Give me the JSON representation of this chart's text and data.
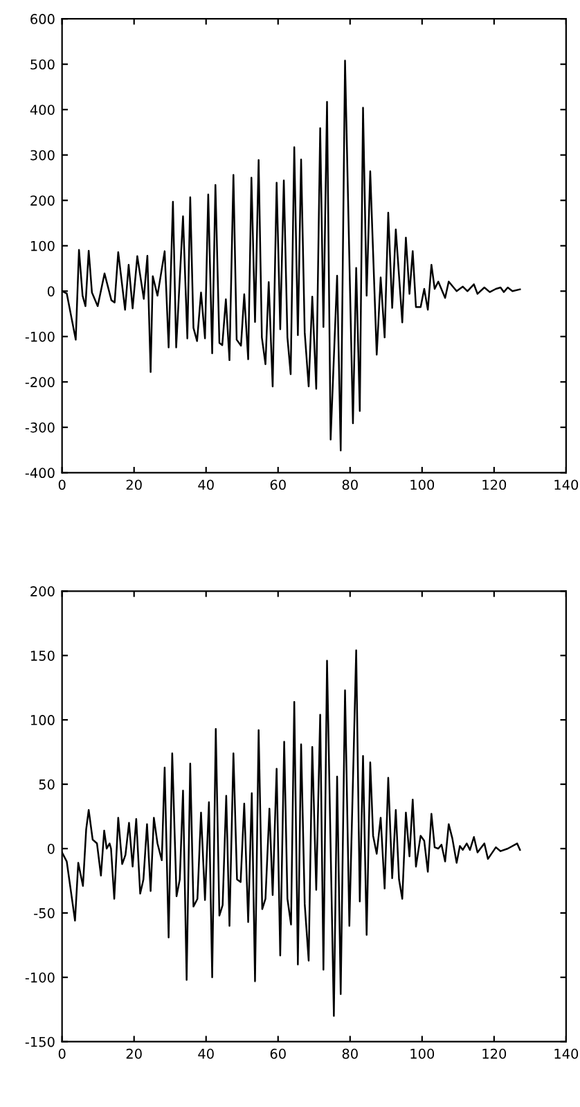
{
  "chart_data": [
    {
      "type": "line",
      "xlim": [
        0,
        140
      ],
      "xticks": [
        0,
        20,
        40,
        60,
        80,
        100,
        120,
        140
      ],
      "ylim": [
        -400,
        600
      ],
      "yticks": [
        -400,
        -300,
        -200,
        -100,
        0,
        100,
        200,
        300,
        400,
        500,
        600
      ],
      "grid": false,
      "legend": false,
      "series": [
        {
          "color": "#000000",
          "x": [
            0,
            1.3,
            3.8,
            4.7,
            5.7,
            6.5,
            7.4,
            8.3,
            9.9,
            11.8,
            13.7,
            14.6,
            15.6,
            17.5,
            18.5,
            19.6,
            20.9,
            22.7,
            23.7,
            24.6,
            25.2,
            26.5,
            28.5,
            29.6,
            30.8,
            31.7,
            33.6,
            34.8,
            35.6,
            36.5,
            37.5,
            38.6,
            39.7,
            40.6,
            41.7,
            42.6,
            43.7,
            44.5,
            45.5,
            46.5,
            47.6,
            48.5,
            49.7,
            50.6,
            51.7,
            52.6,
            53.6,
            54.6,
            55.5,
            56.5,
            57.4,
            58.5,
            59.6,
            60.6,
            61.6,
            62.6,
            63.5,
            64.5,
            65.5,
            66.4,
            67.4,
            68.5,
            69.5,
            70.6,
            71.7,
            72.6,
            73.6,
            74.6,
            76.4,
            77.4,
            78.6,
            80.8,
            81.7,
            82.7,
            83.6,
            84.6,
            85.6,
            87.4,
            88.5,
            89.6,
            90.6,
            91.7,
            92.7,
            94.5,
            95.5,
            96.5,
            97.4,
            98.3,
            99.6,
            100.6,
            101.6,
            102.6,
            103.5,
            104.5,
            106.4,
            107.4,
            109.6,
            111.3,
            112.6,
            114.4,
            115.4,
            117.3,
            118.8,
            120.5,
            121.8,
            122.7,
            123.8,
            125.1,
            127.2
          ],
          "values": [
            0,
            -5,
            -107,
            91,
            -10,
            -33,
            89,
            -3,
            -33,
            39,
            -20,
            -25,
            86,
            -41,
            58,
            -38,
            77,
            -17,
            78,
            -178,
            33,
            -10,
            88,
            -124,
            197,
            -124,
            165,
            -104,
            207,
            -81,
            -110,
            -3,
            -104,
            213,
            -137,
            234,
            -114,
            -119,
            -18,
            -152,
            256,
            -107,
            -120,
            -7,
            -150,
            250,
            -68,
            289,
            -102,
            -161,
            20,
            -210,
            239,
            -84,
            244,
            -102,
            -183,
            317,
            -97,
            290,
            -91,
            -210,
            -12,
            -215,
            359,
            -79,
            417,
            -327,
            34,
            -351,
            508,
            -291,
            51,
            -264,
            404,
            -10,
            264,
            -140,
            30,
            -102,
            173,
            -37,
            136,
            -69,
            118,
            -6,
            88,
            -35,
            -35,
            5,
            -41,
            58,
            5,
            21,
            -15,
            21,
            0,
            10,
            0,
            15,
            -6,
            8,
            -2,
            5,
            8,
            -2,
            8,
            0,
            4
          ]
        }
      ]
    },
    {
      "type": "line",
      "xlim": [
        0,
        140
      ],
      "xticks": [
        0,
        20,
        40,
        60,
        80,
        100,
        120,
        140
      ],
      "ylim": [
        -150,
        200
      ],
      "yticks": [
        -150,
        -100,
        -50,
        0,
        50,
        100,
        150,
        200
      ],
      "grid": false,
      "legend": false,
      "series": [
        {
          "color": "#000000",
          "x": [
            0,
            1.3,
            3.6,
            4.5,
            5.8,
            6.7,
            7.4,
            8.5,
            9.7,
            10.8,
            11.7,
            12.4,
            13.2,
            13.6,
            14.5,
            15.6,
            16.7,
            17.6,
            18.6,
            19.6,
            20.6,
            21.7,
            22.6,
            23.6,
            24.6,
            25.5,
            26.5,
            27.7,
            28.5,
            29.6,
            30.6,
            31.8,
            32.7,
            33.6,
            34.6,
            35.6,
            36.5,
            37.6,
            38.6,
            39.7,
            40.8,
            41.7,
            42.7,
            43.7,
            44.6,
            45.6,
            46.5,
            47.6,
            48.6,
            49.6,
            50.6,
            51.7,
            52.7,
            53.6,
            54.6,
            55.6,
            56.5,
            57.6,
            58.5,
            59.6,
            60.6,
            61.7,
            62.6,
            63.6,
            64.5,
            65.5,
            66.4,
            67.4,
            68.5,
            69.5,
            70.6,
            71.7,
            72.6,
            73.6,
            75.5,
            76.4,
            77.4,
            78.6,
            79.8,
            81.7,
            82.7,
            83.6,
            84.6,
            85.6,
            86.4,
            87.4,
            88.5,
            89.6,
            90.6,
            91.7,
            92.7,
            93.6,
            94.5,
            95.5,
            96.5,
            97.4,
            98.3,
            99.6,
            100.6,
            101.6,
            102.6,
            103.5,
            104.5,
            105.4,
            106.4,
            107.4,
            108.4,
            109.6,
            110.5,
            111.3,
            112.4,
            113.3,
            114.4,
            115.4,
            117.3,
            118.3,
            120.5,
            121.8,
            123.8,
            126.4,
            127.2
          ],
          "values": [
            -3,
            -10,
            -56,
            -11,
            -29,
            15,
            30,
            7,
            4,
            -21,
            14,
            0,
            4,
            0,
            -39,
            24,
            -12,
            -5,
            20,
            -14,
            23,
            -35,
            -24,
            19,
            -33,
            24,
            4,
            -9,
            63,
            -69,
            74,
            -37,
            -24,
            45,
            -102,
            66,
            -45,
            -39,
            28,
            -40,
            36,
            -100,
            93,
            -52,
            -44,
            41,
            -60,
            74,
            -24,
            -26,
            35,
            -57,
            43,
            -103,
            92,
            -47,
            -39,
            31,
            -36,
            62,
            -83,
            83,
            -39,
            -59,
            114,
            -90,
            81,
            -43,
            -87,
            79,
            -32,
            104,
            -94,
            146,
            -130,
            56,
            -113,
            123,
            -60,
            154,
            -41,
            72,
            -67,
            67,
            10,
            -4,
            24,
            -31,
            55,
            -23,
            30,
            -24,
            -39,
            28,
            -6,
            38,
            -14,
            10,
            6,
            -18,
            27,
            1,
            0,
            3,
            -10,
            19,
            8,
            -11,
            2,
            -1,
            4,
            -1,
            9,
            -3,
            4,
            -8,
            1,
            -2,
            0,
            4,
            -1
          ]
        }
      ]
    }
  ]
}
